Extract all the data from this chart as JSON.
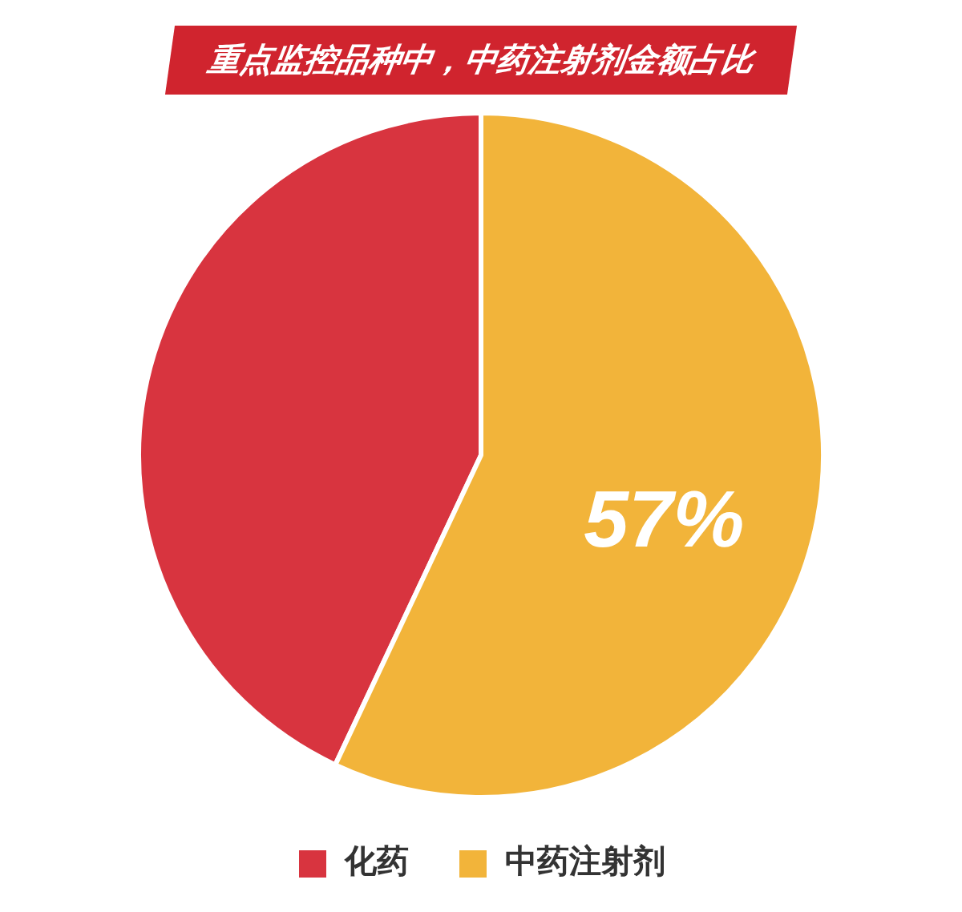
{
  "chart_data": {
    "type": "pie",
    "title": "重点监控品种中，中药注射剂金额占比",
    "categories": [
      "化药",
      "中药注射剂"
    ],
    "values": [
      43,
      57
    ],
    "colors": [
      "#d8343f",
      "#f2b43a"
    ],
    "value_labels": [
      null,
      "57%"
    ],
    "legend": "bottom"
  }
}
